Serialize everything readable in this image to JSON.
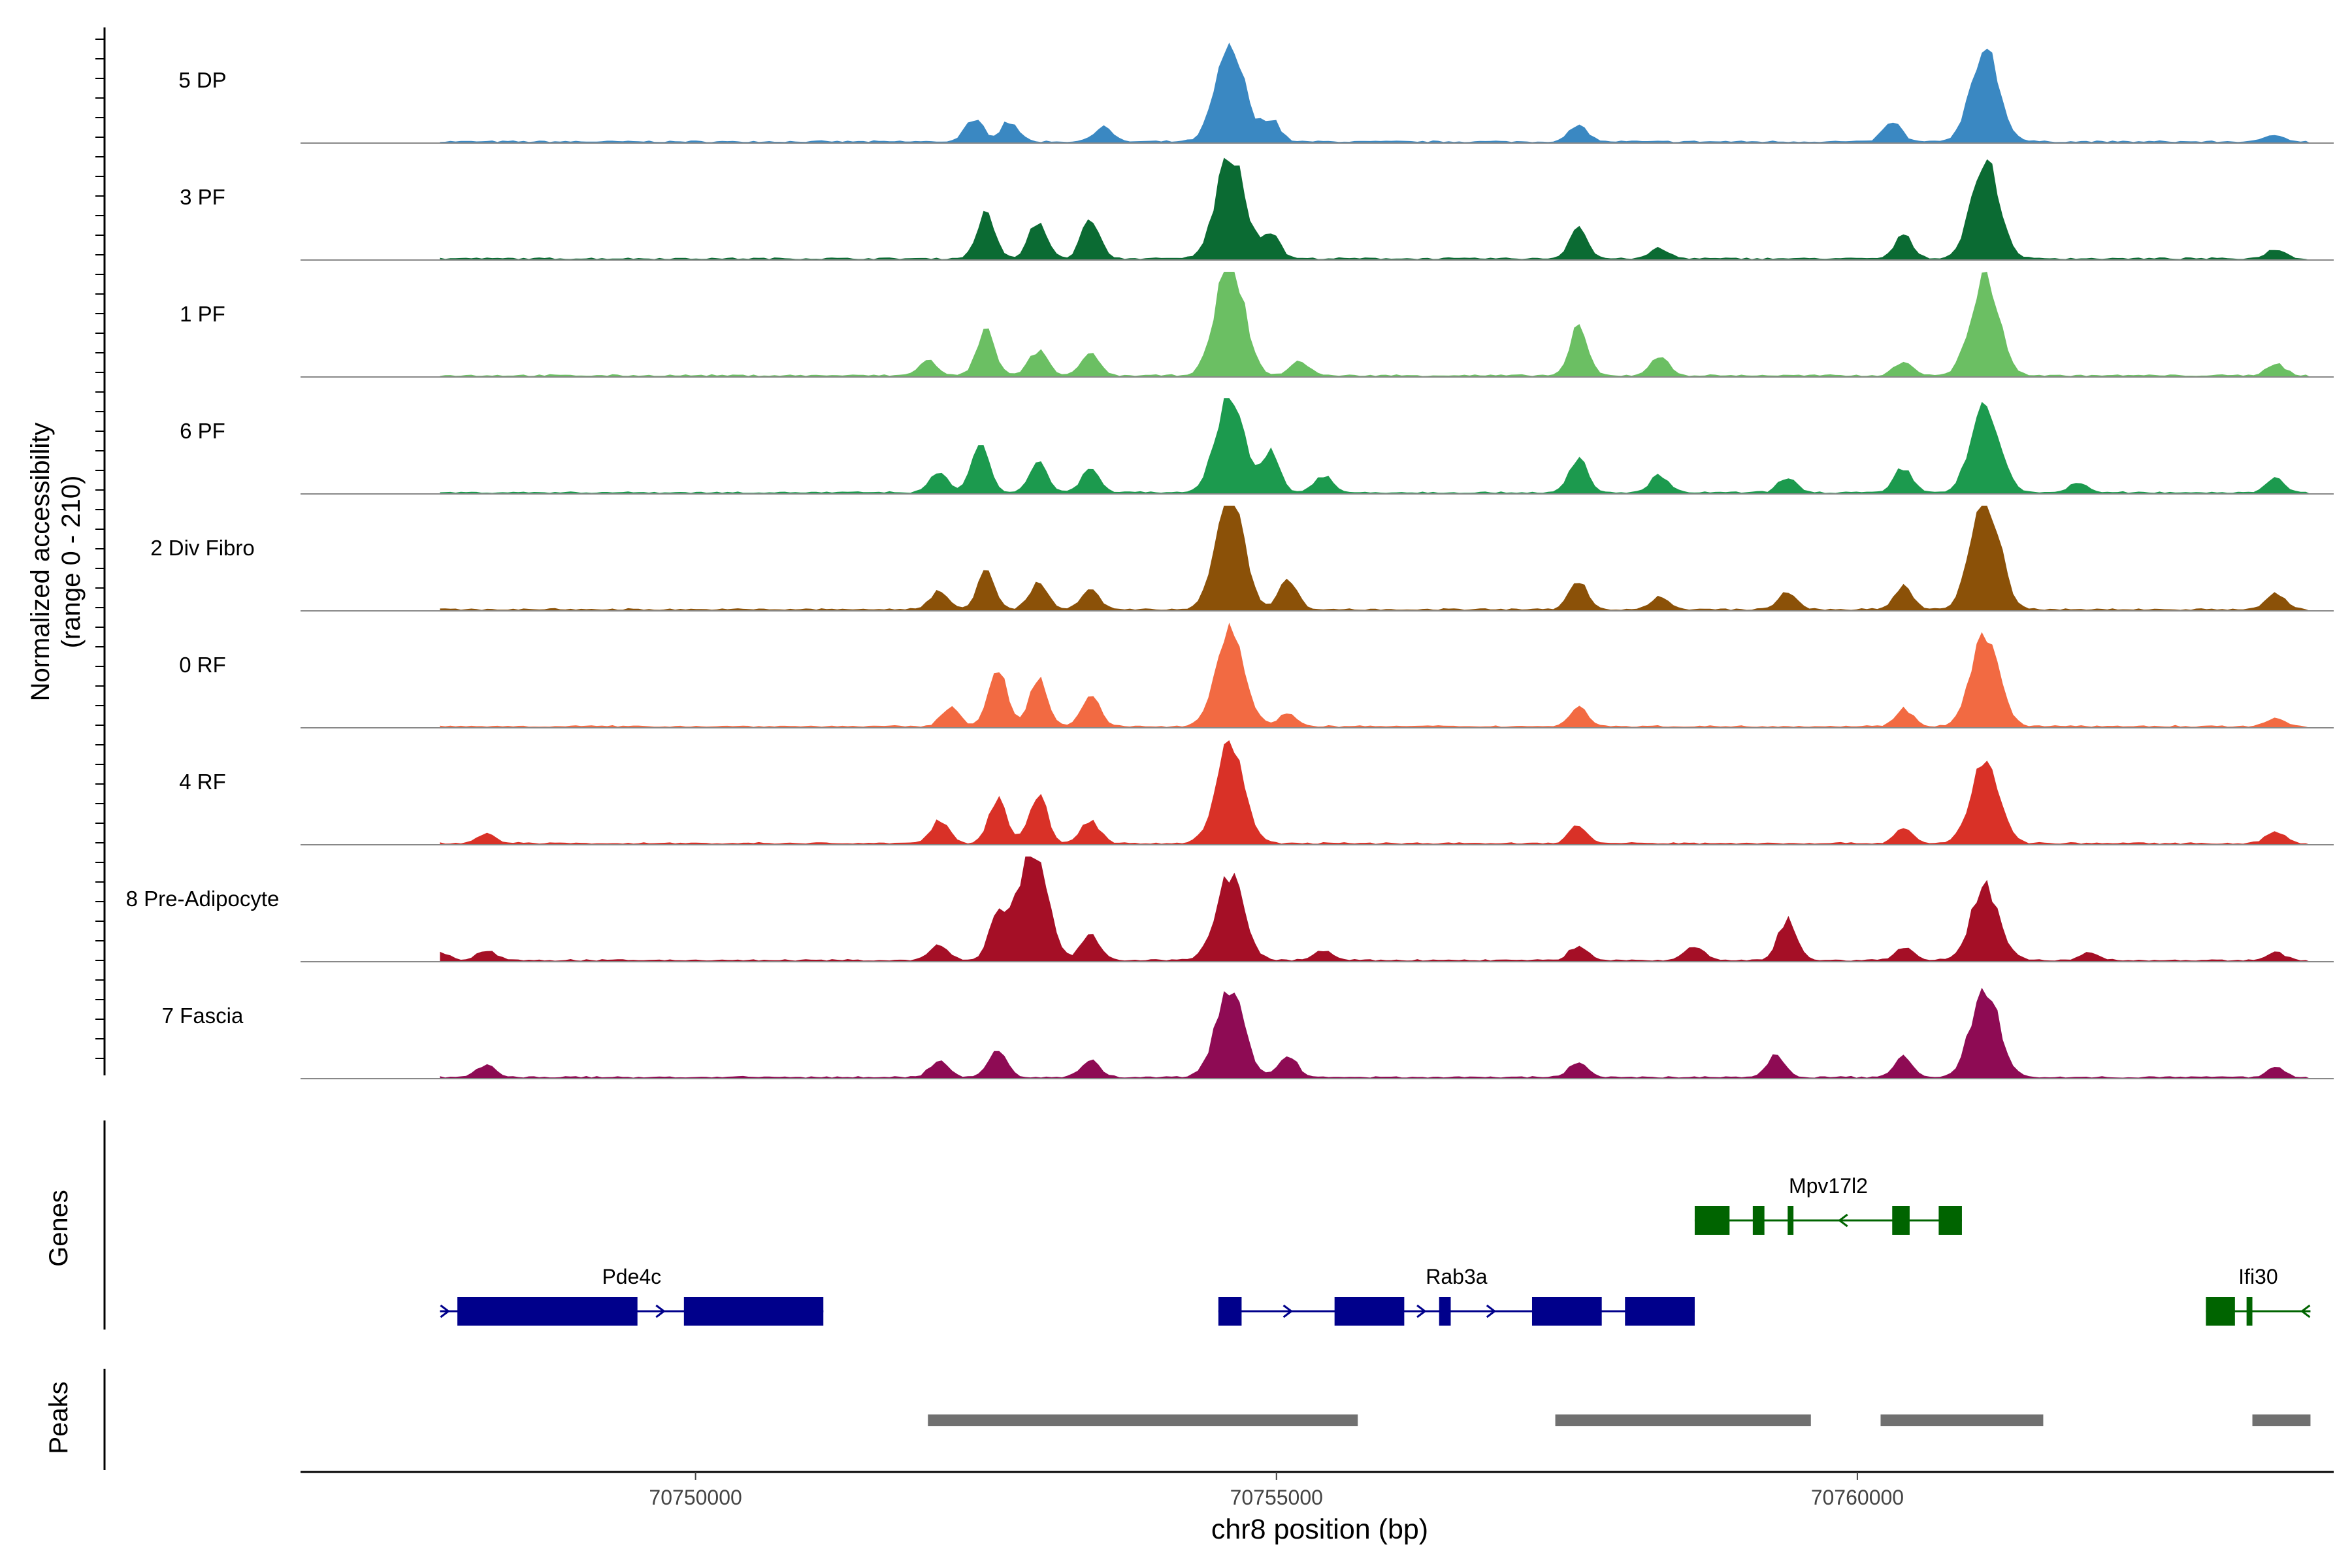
{
  "chart_data": {
    "type": "area",
    "title": "",
    "ylabel_line1": "Normalized accessibility",
    "ylabel_line2": "(range 0 - 210)",
    "yrange": [
      0,
      210
    ],
    "xlabel": "chr8 position (bp)",
    "xlim": [
      70746600,
      70764100
    ],
    "xticks": [
      70750000,
      70755000,
      70760000
    ],
    "xtick_labels": [
      "70750000",
      "70755000",
      "70760000"
    ],
    "panel_labels": {
      "genes": "Genes",
      "peaks": "Peaks"
    },
    "tracks": [
      {
        "name": "5 DP",
        "color": "#3A88C2",
        "peaks": [
          [
            70752400,
            45
          ],
          [
            70752700,
            40
          ],
          [
            70753500,
            30
          ],
          [
            70754600,
            200
          ],
          [
            70754950,
            45
          ],
          [
            70757600,
            35
          ],
          [
            70760300,
            40
          ],
          [
            70761100,
            185
          ],
          [
            70763600,
            15
          ]
        ]
      },
      {
        "name": "3 PF",
        "color": "#0B6B33",
        "peaks": [
          [
            70752500,
            95
          ],
          [
            70752950,
            75
          ],
          [
            70753400,
            80
          ],
          [
            70754600,
            210
          ],
          [
            70754950,
            50
          ],
          [
            70757600,
            60
          ],
          [
            70758300,
            20
          ],
          [
            70760400,
            45
          ],
          [
            70761100,
            190
          ],
          [
            70763600,
            20
          ]
        ]
      },
      {
        "name": "1 PF",
        "color": "#6BBF63",
        "peaks": [
          [
            70752000,
            30
          ],
          [
            70752500,
            90
          ],
          [
            70752950,
            50
          ],
          [
            70753400,
            45
          ],
          [
            70754600,
            230
          ],
          [
            70755200,
            30
          ],
          [
            70757600,
            95
          ],
          [
            70758300,
            40
          ],
          [
            70760400,
            30
          ],
          [
            70761100,
            205
          ],
          [
            70763600,
            25
          ]
        ]
      },
      {
        "name": "6 PF",
        "color": "#1C9A4E",
        "peaks": [
          [
            70752100,
            40
          ],
          [
            70752450,
            90
          ],
          [
            70752950,
            60
          ],
          [
            70753400,
            45
          ],
          [
            70754600,
            200
          ],
          [
            70754950,
            80
          ],
          [
            70755400,
            35
          ],
          [
            70757600,
            70
          ],
          [
            70758300,
            35
          ],
          [
            70759400,
            30
          ],
          [
            70760400,
            50
          ],
          [
            70761100,
            185
          ],
          [
            70761900,
            20
          ],
          [
            70763600,
            30
          ]
        ]
      },
      {
        "name": "2 Div Fibro",
        "color": "#8B5108",
        "peaks": [
          [
            70752100,
            40
          ],
          [
            70752500,
            75
          ],
          [
            70752950,
            55
          ],
          [
            70753400,
            40
          ],
          [
            70754600,
            230
          ],
          [
            70755100,
            60
          ],
          [
            70757600,
            55
          ],
          [
            70758300,
            25
          ],
          [
            70759400,
            35
          ],
          [
            70760400,
            45
          ],
          [
            70761100,
            230
          ],
          [
            70763600,
            35
          ]
        ]
      },
      {
        "name": "0 RF",
        "color": "#F26A42",
        "peaks": [
          [
            70752200,
            40
          ],
          [
            70752600,
            115
          ],
          [
            70752950,
            100
          ],
          [
            70753400,
            60
          ],
          [
            70754600,
            200
          ],
          [
            70755100,
            25
          ],
          [
            70757600,
            40
          ],
          [
            70760400,
            35
          ],
          [
            70761100,
            180
          ],
          [
            70763600,
            15
          ]
        ]
      },
      {
        "name": "4 RF",
        "color": "#D93127",
        "peaks": [
          [
            70748200,
            20
          ],
          [
            70752100,
            45
          ],
          [
            70752600,
            90
          ],
          [
            70752950,
            100
          ],
          [
            70753400,
            45
          ],
          [
            70754600,
            195
          ],
          [
            70757600,
            35
          ],
          [
            70760400,
            30
          ],
          [
            70761100,
            160
          ],
          [
            70763600,
            25
          ]
        ]
      },
      {
        "name": "8 Pre-Adipocyte",
        "color": "#A50F26",
        "peaks": [
          [
            70747800,
            15
          ],
          [
            70748200,
            20
          ],
          [
            70752100,
            30
          ],
          [
            70752600,
            85
          ],
          [
            70752900,
            230
          ],
          [
            70753400,
            55
          ],
          [
            70754600,
            170
          ],
          [
            70755400,
            20
          ],
          [
            70757600,
            30
          ],
          [
            70758600,
            30
          ],
          [
            70759400,
            85
          ],
          [
            70760400,
            25
          ],
          [
            70761100,
            150
          ],
          [
            70762000,
            15
          ],
          [
            70763600,
            15
          ]
        ]
      },
      {
        "name": "7 Fascia",
        "color": "#8E0B54",
        "peaks": [
          [
            70748200,
            25
          ],
          [
            70752100,
            35
          ],
          [
            70752600,
            50
          ],
          [
            70753400,
            35
          ],
          [
            70754600,
            185
          ],
          [
            70755100,
            45
          ],
          [
            70757600,
            30
          ],
          [
            70759300,
            45
          ],
          [
            70760400,
            40
          ],
          [
            70761100,
            180
          ],
          [
            70763600,
            20
          ]
        ]
      }
    ],
    "genes": [
      {
        "name": "Pde4c",
        "strand": "+",
        "row": 2,
        "color": "#00008B",
        "start": 70747800,
        "end": 70751100,
        "exons": [
          [
            70747950,
            70749500
          ],
          [
            70749900,
            70751100
          ]
        ]
      },
      {
        "name": "Rab3a",
        "strand": "+",
        "row": 2,
        "color": "#00008B",
        "start": 70754500,
        "end": 70758600,
        "exons": [
          [
            70754500,
            70754700
          ],
          [
            70755500,
            70756100
          ],
          [
            70756400,
            70756500
          ],
          [
            70757200,
            70757800
          ],
          [
            70758000,
            70758600
          ]
        ]
      },
      {
        "name": "Mpv17l2",
        "strand": "-",
        "row": 1,
        "color": "#006400",
        "start": 70758600,
        "end": 70760900,
        "exons": [
          [
            70758600,
            70758900
          ],
          [
            70759100,
            70759200
          ],
          [
            70759400,
            70759450
          ],
          [
            70760300,
            70760450
          ],
          [
            70760700,
            70760900
          ]
        ]
      },
      {
        "name": "Ifi30",
        "strand": "-",
        "row": 2,
        "color": "#006400",
        "start": 70763000,
        "end": 70763900,
        "exons": [
          [
            70763000,
            70763250
          ],
          [
            70763350,
            70763400
          ]
        ]
      }
    ],
    "peaks_track": {
      "color": "#707070",
      "regions": [
        [
          70752000,
          70755700
        ],
        [
          70757400,
          70759600
        ],
        [
          70760200,
          70761600
        ],
        [
          70763400,
          70763900
        ]
      ]
    }
  }
}
